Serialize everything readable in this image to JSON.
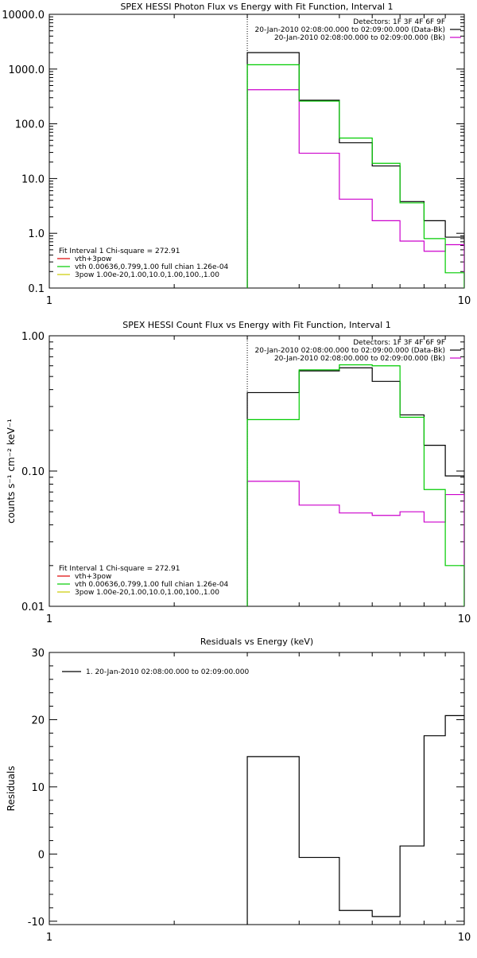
{
  "chart_data": [
    {
      "type": "line",
      "title": "SPEX HESSI Photon Flux vs Energy with Fit Function, Interval 1",
      "xlabel": "",
      "ylabel": "",
      "xscale": "log",
      "yscale": "log",
      "xlim": [
        1,
        10
      ],
      "ylim": [
        0.1,
        10000
      ],
      "xticks": [
        {
          "v": 1,
          "label": "1"
        },
        {
          "v": 10,
          "label": "10"
        }
      ],
      "yticks": [
        {
          "v": 0.1,
          "label": "0.1"
        },
        {
          "v": 1,
          "label": "1.0"
        },
        {
          "v": 10,
          "label": "10.0"
        },
        {
          "v": 100,
          "label": "100.0"
        },
        {
          "v": 1000,
          "label": "1000.0"
        },
        {
          "v": 10000,
          "label": "10000.0"
        }
      ],
      "dotted_x": 3,
      "legend_top": {
        "placement": "top-right",
        "header": "Detectors: 1F 3F 4F 6F 9F",
        "entries": [
          {
            "label": "20-Jan-2010 02:08:00.000 to 02:09:00.000 (Data-Bk)",
            "color": "#000000"
          },
          {
            "label": "20-Jan-2010 02:08:00.000 to 02:09:00.000 (Bk)",
            "color": "#cc00cc"
          }
        ]
      },
      "legend_bottom": {
        "placement": "bottom-left",
        "header": "Fit Interval 1   Chi-square = 272.91",
        "entries": [
          {
            "label": "vth+3pow",
            "color": "#dd0000"
          },
          {
            "label": "vth 0.00636,0.799,1.00  full chian 1.26e-04",
            "color": "#00cc00"
          },
          {
            "label": "3pow 1.00e-20,1.00,10.0,1.00,100.,1.00",
            "color": "#cccc00"
          }
        ]
      },
      "series": [
        {
          "name": "20-Jan-2010 02:08:00.000 to 02:09:00.000 (Data-Bk)",
          "color": "#000000",
          "edges": [
            3,
            4,
            5,
            6,
            7,
            8,
            9,
            10
          ],
          "values": [
            2000,
            270,
            45,
            17,
            3.8,
            1.7,
            0.85
          ]
        },
        {
          "name": "20-Jan-2010 02:08:00.000 to 02:09:00.000 (Bk)",
          "color": "#cc00cc",
          "edges": [
            3,
            4,
            5,
            6,
            7,
            8,
            9,
            10
          ],
          "values": [
            420,
            29,
            4.2,
            1.7,
            0.72,
            0.47,
            0.62
          ]
        },
        {
          "name": "vth 0.00636,0.799,1.00  full chian 1.26e-04",
          "color": "#00cc00",
          "edges": [
            3,
            4,
            5,
            6,
            7,
            8,
            9,
            10
          ],
          "values": [
            1200,
            260,
            55,
            19,
            3.6,
            0.8,
            0.19
          ]
        }
      ]
    },
    {
      "type": "line",
      "title": "SPEX HESSI Count Flux vs Energy with Fit Function, Interval 1",
      "xlabel": "",
      "ylabel": "counts s⁻¹ cm⁻² keV⁻¹",
      "xscale": "log",
      "yscale": "log",
      "xlim": [
        1,
        10
      ],
      "ylim": [
        0.01,
        1
      ],
      "xticks": [
        {
          "v": 1,
          "label": "1"
        },
        {
          "v": 10,
          "label": "10"
        }
      ],
      "yticks": [
        {
          "v": 0.01,
          "label": "0.01"
        },
        {
          "v": 0.1,
          "label": "0.10"
        },
        {
          "v": 1,
          "label": "1.00"
        }
      ],
      "dotted_x": 3,
      "legend_top": {
        "placement": "top-right",
        "header": "Detectors: 1F 3F 4F 6F 9F",
        "entries": [
          {
            "label": "20-Jan-2010 02:08:00.000 to 02:09:00.000 (Data-Bk)",
            "color": "#000000"
          },
          {
            "label": "20-Jan-2010 02:08:00.000 to 02:09:00.000 (Bk)",
            "color": "#cc00cc"
          }
        ]
      },
      "legend_bottom": {
        "placement": "bottom-left",
        "header": "Fit Interval 1   Chi-square = 272.91",
        "entries": [
          {
            "label": "vth+3pow",
            "color": "#dd0000"
          },
          {
            "label": "vth 0.00636,0.799,1.00  full chian 1.26e-04",
            "color": "#00cc00"
          },
          {
            "label": "3pow 1.00e-20,1.00,10.0,1.00,100.,1.00",
            "color": "#cccc00"
          }
        ]
      },
      "series": [
        {
          "name": "20-Jan-2010 02:08:00.000 to 02:09:00.000 (Data-Bk)",
          "color": "#000000",
          "edges": [
            3,
            4,
            5,
            6,
            7,
            8,
            9,
            10
          ],
          "values": [
            0.38,
            0.55,
            0.58,
            0.46,
            0.26,
            0.155,
            0.092
          ]
        },
        {
          "name": "20-Jan-2010 02:08:00.000 to 02:09:00.000 (Bk)",
          "color": "#cc00cc",
          "edges": [
            3,
            4,
            5,
            6,
            7,
            8,
            9,
            10
          ],
          "values": [
            0.084,
            0.056,
            0.049,
            0.047,
            0.05,
            0.042,
            0.067
          ]
        },
        {
          "name": "vth 0.00636,0.799,1.00  full chian 1.26e-04",
          "color": "#00cc00",
          "edges": [
            3,
            4,
            5,
            6,
            7,
            8,
            9,
            10
          ],
          "values": [
            0.24,
            0.56,
            0.61,
            0.6,
            0.25,
            0.073,
            0.02
          ]
        }
      ]
    },
    {
      "type": "line",
      "title": "Residuals vs Energy (keV)",
      "xlabel": "",
      "ylabel": "Residuals",
      "xscale": "log",
      "yscale": "linear",
      "xlim": [
        1,
        10
      ],
      "ylim": [
        -10.5,
        30
      ],
      "xticks": [
        {
          "v": 1,
          "label": "1"
        },
        {
          "v": 10,
          "label": "10"
        }
      ],
      "yticks": [
        {
          "v": -10,
          "label": "-10"
        },
        {
          "v": 0,
          "label": "0"
        },
        {
          "v": 10,
          "label": "10"
        },
        {
          "v": 20,
          "label": "20"
        },
        {
          "v": 30,
          "label": "30"
        }
      ],
      "legend_top": {
        "placement": "top-left",
        "header": "",
        "entries": [
          {
            "label": "1. 20-Jan-2010 02:08:00.000 to 02:09:00.000",
            "color": "#000000"
          }
        ]
      },
      "series": [
        {
          "name": "1. 20-Jan-2010 02:08:00.000 to 02:09:00.000",
          "color": "#000000",
          "edges": [
            3,
            4,
            5,
            6,
            7,
            8,
            9,
            10
          ],
          "values": [
            14.5,
            -0.5,
            -8.4,
            -9.3,
            1.2,
            17.6,
            20.6
          ]
        }
      ]
    }
  ]
}
